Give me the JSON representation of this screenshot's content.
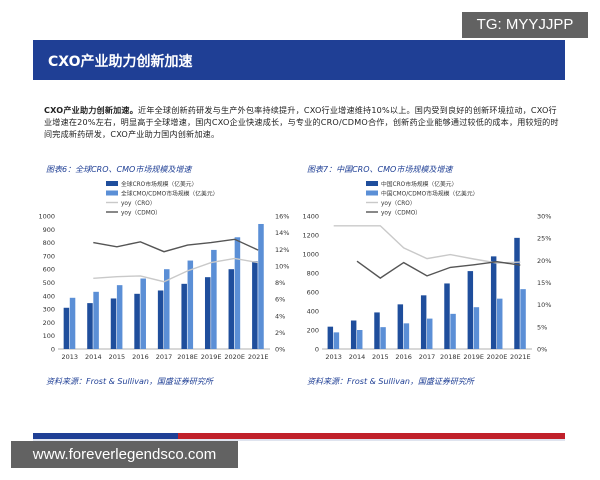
{
  "header": {
    "title": "CXO产业助力创新加速"
  },
  "watermarks": {
    "tg": "TG: MYYJJPP",
    "url": "www.foreverlegendsco.com"
  },
  "paragraph": {
    "bold_lead": "CXO产业助力创新加速。",
    "body": "近年全球创新药研发与生产外包率持续提升，CXO行业增速维持10%以上。国内受到良好的创新环境拉动，CXO行业增速在20%左右，明显高于全球增速，国内CXO企业快速成长，与专业的CRO/CDMO合作，创新药企业能够通过较低的成本，用较短的时间完成新药研发，CXO产业助力国内创新加速。"
  },
  "figures": [
    {
      "title": "图表6：全球CRO、CMO市场规模及增速",
      "source": "资料来源：Frost & Sullivan，国盛证券研究所"
    },
    {
      "title": "图表7：中国CRO、CMO市场规模及增速",
      "source": "资料来源：Frost & Sullivan，国盛证券研究所"
    }
  ],
  "colors": {
    "navy": "#1f3f95",
    "bar_dark": "#1f4e9c",
    "bar_light": "#5b8fd6",
    "line_gray": "#555555",
    "line_light": "#c9c9c9",
    "footer_red": "#c0202a"
  },
  "chart_data": [
    {
      "type": "bar",
      "categories": [
        "2013",
        "2014",
        "2015",
        "2016",
        "2017",
        "2018E",
        "2019E",
        "2020E",
        "2021E"
      ],
      "series": [
        {
          "name": "全球CRO市场规模（亿美元）",
          "kind": "bar",
          "axis": "left",
          "values": [
            310,
            345,
            380,
            415,
            440,
            490,
            540,
            600,
            660
          ]
        },
        {
          "name": "全球CMO/CDMO市场规模（亿美元）",
          "kind": "bar",
          "axis": "left",
          "values": [
            385,
            430,
            480,
            530,
            600,
            665,
            745,
            840,
            940
          ]
        },
        {
          "name": "yoy（CRO）",
          "kind": "line",
          "axis": "right",
          "values": [
            null,
            8.5,
            8.7,
            8.8,
            8.1,
            9.4,
            10.4,
            10.9,
            10.4
          ]
        },
        {
          "name": "yoy（CDMO）",
          "kind": "line",
          "axis": "right",
          "values": [
            null,
            12.8,
            12.3,
            12.9,
            11.7,
            12.5,
            12.8,
            13.2,
            11.9
          ]
        }
      ],
      "ylim": [
        0,
        1000
      ],
      "yticks": [
        0,
        100,
        200,
        300,
        400,
        500,
        600,
        700,
        800,
        900,
        1000
      ],
      "y2lim": [
        0,
        16
      ],
      "y2ticks": [
        "0%",
        "2%",
        "4%",
        "6%",
        "8%",
        "10%",
        "12%",
        "14%",
        "16%"
      ]
    },
    {
      "type": "bar",
      "categories": [
        "2013",
        "2014",
        "2015",
        "2016",
        "2017",
        "2018E",
        "2019E",
        "2020E",
        "2021E"
      ],
      "series": [
        {
          "name": "中国CRO市场规模（亿美元）",
          "kind": "bar",
          "axis": "left",
          "values": [
            235,
            300,
            385,
            470,
            565,
            690,
            820,
            975,
            1170
          ]
        },
        {
          "name": "中国CMO/CDMO市场规模（亿美元）",
          "kind": "bar",
          "axis": "left",
          "values": [
            175,
            200,
            230,
            270,
            320,
            370,
            440,
            530,
            630
          ]
        },
        {
          "name": "yoy（CRO）",
          "kind": "line",
          "axis": "right",
          "values": [
            27.8,
            27.8,
            27.8,
            22.8,
            20.4,
            21.3,
            20.3,
            19.4,
            19.6
          ]
        },
        {
          "name": "yoy（CDMO）",
          "kind": "line",
          "axis": "right",
          "values": [
            null,
            19.8,
            16.0,
            19.5,
            16.5,
            18.4,
            19.0,
            19.7,
            18.9
          ]
        }
      ],
      "ylim": [
        0,
        1400
      ],
      "yticks": [
        0,
        200,
        400,
        600,
        800,
        1000,
        1200,
        1400
      ],
      "y2lim": [
        0,
        30
      ],
      "y2ticks": [
        "0%",
        "5%",
        "10%",
        "15%",
        "20%",
        "25%",
        "30%"
      ]
    }
  ]
}
